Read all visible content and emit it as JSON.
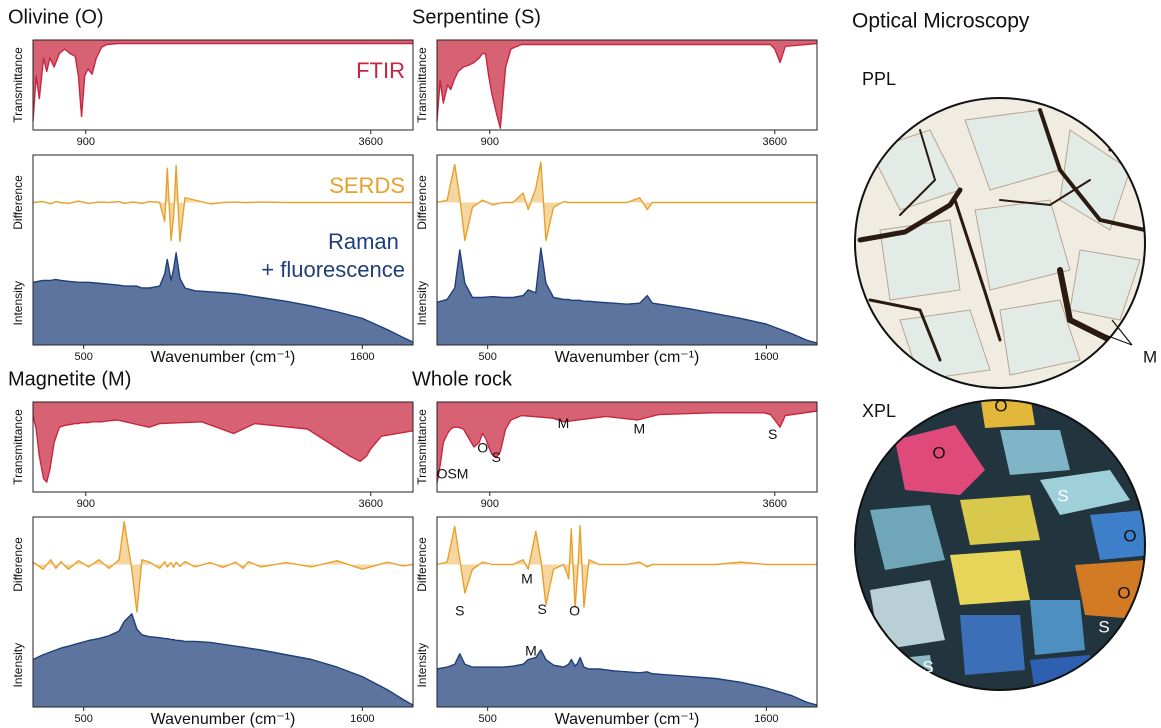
{
  "chart_data": [
    {
      "type": "spectra",
      "title": "Olivine (O)",
      "ftir": {
        "ylabel": "Transmittance",
        "xlim": [
          400,
          4000
        ],
        "xticks": [
          900,
          3600
        ],
        "ylim": [
          0,
          1
        ],
        "x": [
          400,
          430,
          460,
          500,
          530,
          560,
          600,
          650,
          700,
          750,
          800,
          830,
          860,
          890,
          920,
          960,
          1000,
          1050,
          1100,
          1200,
          1500,
          1600,
          2000,
          2300,
          2500,
          3000,
          3400,
          3500,
          3560,
          3600,
          3650,
          3700,
          4000
        ],
        "series": [
          {
            "name": "FTIR",
            "color": "#c8263f",
            "fill": "above",
            "values": [
              0.1,
              0.6,
              0.35,
              0.8,
              0.65,
              0.8,
              0.7,
              0.85,
              0.9,
              0.85,
              0.82,
              0.6,
              0.15,
              0.6,
              0.68,
              0.62,
              0.8,
              0.92,
              0.95,
              0.96,
              0.96,
              0.96,
              0.96,
              0.96,
              0.96,
              0.96,
              0.96,
              0.96,
              0.96,
              0.96,
              0.96,
              0.96,
              0.96
            ]
          }
        ]
      },
      "raman": {
        "xlabel": "Wavenumber (cm⁻¹)",
        "ylabel": "Intensity",
        "y2label": "Difference",
        "xlim": [
          300,
          1800
        ],
        "xticks": [
          500,
          1600
        ],
        "ylim": [
          0,
          2
        ],
        "y2lim": [
          -3,
          1
        ],
        "x": [
          300,
          340,
          370,
          390,
          410,
          440,
          480,
          520,
          560,
          600,
          640,
          660,
          690,
          710,
          730,
          760,
          800,
          820,
          830,
          845,
          855,
          865,
          880,
          900,
          940,
          1000,
          1050,
          1100,
          1130,
          1150,
          1200,
          1300,
          1400,
          1500,
          1600,
          1700,
          1760,
          1800
        ],
        "series": [
          {
            "name": "SERDS",
            "color": "#e8a12c",
            "axis": "y2",
            "fill": "zero",
            "values": [
              0,
              0.02,
              -0.03,
              0.02,
              0,
              -0.02,
              0.03,
              -0.02,
              0.01,
              0,
              0.02,
              -0.02,
              0.01,
              0,
              -0.02,
              0.02,
              0,
              -0.4,
              0.72,
              -0.8,
              -0.3,
              0.78,
              -0.82,
              0.1,
              0.05,
              -0.03,
              0,
              0.01,
              0,
              0,
              0.01,
              0,
              0,
              0,
              0,
              0,
              0,
              0
            ]
          },
          {
            "name": "Raman + fluorescence",
            "color": "#1f3f7a",
            "fill": "below",
            "values": [
              0.66,
              0.68,
              0.68,
              0.69,
              0.68,
              0.67,
              0.66,
              0.66,
              0.65,
              0.64,
              0.63,
              0.62,
              0.62,
              0.62,
              0.6,
              0.6,
              0.62,
              0.75,
              0.9,
              0.68,
              0.8,
              0.97,
              0.7,
              0.6,
              0.57,
              0.56,
              0.55,
              0.54,
              0.53,
              0.52,
              0.5,
              0.46,
              0.41,
              0.35,
              0.28,
              0.16,
              0.08,
              0.03
            ]
          }
        ]
      }
    },
    {
      "type": "spectra",
      "title": "Serpentine (S)",
      "ftir": {
        "ylabel": "Transmittance",
        "xlim": [
          400,
          4000
        ],
        "xticks": [
          900,
          3600
        ],
        "ylim": [
          0,
          1
        ],
        "x": [
          400,
          430,
          460,
          500,
          530,
          560,
          600,
          650,
          700,
          750,
          800,
          830,
          860,
          890,
          920,
          960,
          1000,
          1050,
          1100,
          1200,
          1500,
          1600,
          2000,
          2300,
          2500,
          3000,
          3400,
          3500,
          3560,
          3600,
          3650,
          3700,
          4000
        ],
        "series": [
          {
            "color": "#c8263f",
            "fill": "above",
            "values": [
              0.1,
              0.55,
              0.3,
              0.5,
              0.45,
              0.55,
              0.65,
              0.7,
              0.72,
              0.75,
              0.8,
              0.85,
              0.85,
              0.6,
              0.4,
              0.2,
              0.02,
              0.7,
              0.9,
              0.95,
              0.95,
              0.95,
              0.95,
              0.95,
              0.95,
              0.95,
              0.95,
              0.95,
              0.95,
              0.9,
              0.75,
              0.93,
              0.96
            ]
          }
        ]
      },
      "raman": {
        "xlabel": "Wavenumber (cm⁻¹)",
        "ylabel": "Intensity",
        "y2label": "Difference",
        "xlim": [
          300,
          1800
        ],
        "xticks": [
          500,
          1600
        ],
        "ylim": [
          0,
          2
        ],
        "y2lim": [
          -3,
          1
        ],
        "x": [
          300,
          340,
          370,
          390,
          410,
          440,
          480,
          520,
          560,
          600,
          640,
          660,
          690,
          710,
          730,
          760,
          800,
          820,
          830,
          845,
          855,
          865,
          880,
          900,
          940,
          1000,
          1050,
          1100,
          1130,
          1150,
          1200,
          1300,
          1400,
          1500,
          1600,
          1700,
          1760,
          1800
        ],
        "series": [
          {
            "color": "#e8a12c",
            "axis": "y2",
            "fill": "zero",
            "values": [
              0,
              0.05,
              0.8,
              0.1,
              -0.8,
              -0.1,
              0.05,
              -0.05,
              0,
              0,
              0.2,
              -0.15,
              0.3,
              0.85,
              -0.8,
              -0.1,
              0.02,
              0,
              0,
              0,
              0,
              0,
              0,
              0,
              0,
              0,
              0,
              0.1,
              -0.15,
              0,
              0,
              0,
              0,
              0,
              0,
              0,
              0,
              0
            ]
          },
          {
            "color": "#1f3f7a",
            "fill": "below",
            "values": [
              0.45,
              0.48,
              0.6,
              1.0,
              0.65,
              0.5,
              0.5,
              0.51,
              0.5,
              0.5,
              0.52,
              0.58,
              0.55,
              1.02,
              0.65,
              0.5,
              0.48,
              0.48,
              0.47,
              0.47,
              0.47,
              0.47,
              0.46,
              0.46,
              0.45,
              0.44,
              0.43,
              0.44,
              0.52,
              0.44,
              0.42,
              0.38,
              0.33,
              0.28,
              0.22,
              0.12,
              0.05,
              0.02
            ]
          }
        ]
      }
    },
    {
      "type": "spectra",
      "title": "Magnetite (M)",
      "ftir": {
        "ylabel": "Transmittance",
        "xlim": [
          400,
          4000
        ],
        "xticks": [
          900,
          3600
        ],
        "ylim": [
          0,
          1
        ],
        "x": [
          400,
          430,
          460,
          500,
          530,
          560,
          600,
          650,
          700,
          750,
          800,
          830,
          860,
          890,
          920,
          960,
          1000,
          1050,
          1100,
          1200,
          1500,
          1600,
          2000,
          2300,
          2500,
          3000,
          3400,
          3500,
          3560,
          3600,
          3650,
          3700,
          4000
        ],
        "series": [
          {
            "color": "#c8263f",
            "fill": "above",
            "values": [
              0.85,
              0.7,
              0.4,
              0.15,
              0.11,
              0.25,
              0.55,
              0.72,
              0.74,
              0.75,
              0.76,
              0.76,
              0.77,
              0.77,
              0.77,
              0.78,
              0.78,
              0.78,
              0.79,
              0.8,
              0.72,
              0.76,
              0.78,
              0.65,
              0.76,
              0.7,
              0.4,
              0.34,
              0.4,
              0.48,
              0.55,
              0.62,
              0.68
            ]
          }
        ]
      },
      "raman": {
        "xlabel": "Wavenumber (cm⁻¹)",
        "ylabel": "Intensity",
        "y2label": "Difference",
        "xlim": [
          300,
          1800
        ],
        "xticks": [
          500,
          1600
        ],
        "ylim": [
          0,
          2
        ],
        "y2lim": [
          -3,
          1
        ],
        "x": [
          300,
          340,
          370,
          390,
          410,
          440,
          480,
          520,
          560,
          600,
          640,
          660,
          690,
          710,
          730,
          760,
          800,
          820,
          830,
          845,
          855,
          865,
          880,
          900,
          940,
          1000,
          1050,
          1100,
          1130,
          1150,
          1200,
          1300,
          1400,
          1500,
          1600,
          1700,
          1760,
          1800
        ],
        "series": [
          {
            "color": "#e8a12c",
            "axis": "y2",
            "fill": "zero",
            "values": [
              0.05,
              -0.1,
              0.1,
              -0.08,
              0.06,
              -0.1,
              0.08,
              -0.05,
              0.1,
              -0.08,
              0.1,
              0.9,
              -0.1,
              -1.0,
              0.1,
              0.05,
              -0.08,
              0.06,
              -0.05,
              0.04,
              -0.06,
              0.05,
              -0.04,
              0.06,
              -0.05,
              0.04,
              -0.06,
              0.05,
              -0.08,
              0.06,
              -0.05,
              0.04,
              -0.05,
              0.08,
              -0.1,
              0.05,
              -0.03,
              0
            ]
          },
          {
            "color": "#1f3f7a",
            "fill": "below",
            "values": [
              0.5,
              0.55,
              0.58,
              0.6,
              0.62,
              0.64,
              0.67,
              0.7,
              0.72,
              0.75,
              0.8,
              0.9,
              0.98,
              0.82,
              0.76,
              0.74,
              0.73,
              0.72,
              0.72,
              0.71,
              0.71,
              0.7,
              0.7,
              0.69,
              0.69,
              0.68,
              0.66,
              0.64,
              0.63,
              0.62,
              0.6,
              0.55,
              0.5,
              0.42,
              0.32,
              0.18,
              0.08,
              0.02
            ]
          }
        ]
      }
    },
    {
      "type": "spectra",
      "title": "Whole rock",
      "ftir": {
        "ylabel": "Transmittance",
        "xlim": [
          400,
          4000
        ],
        "xticks": [
          900,
          3600
        ],
        "ylim": [
          0,
          1
        ],
        "x": [
          400,
          430,
          460,
          500,
          530,
          560,
          600,
          650,
          700,
          750,
          800,
          830,
          860,
          890,
          920,
          960,
          1000,
          1050,
          1100,
          1200,
          1500,
          1600,
          2000,
          2300,
          2500,
          3000,
          3400,
          3500,
          3560,
          3600,
          3650,
          3700,
          4000
        ],
        "series": [
          {
            "color": "#c8263f",
            "fill": "above",
            "values": [
              0.1,
              0.3,
              0.55,
              0.65,
              0.7,
              0.72,
              0.72,
              0.7,
              0.6,
              0.5,
              0.55,
              0.65,
              0.6,
              0.5,
              0.42,
              0.38,
              0.45,
              0.7,
              0.8,
              0.85,
              0.82,
              0.78,
              0.84,
              0.8,
              0.86,
              0.88,
              0.88,
              0.88,
              0.86,
              0.8,
              0.72,
              0.85,
              0.9
            ]
          }
        ],
        "annotations": [
          {
            "text": "OSM",
            "x": 547,
            "y": 0.19
          },
          {
            "text": "O",
            "x": 833,
            "y": 0.48
          },
          {
            "text": "S",
            "x": 962,
            "y": 0.375
          },
          {
            "text": "M",
            "x": 1598,
            "y": 0.75
          },
          {
            "text": "M",
            "x": 2317,
            "y": 0.69
          },
          {
            "text": "S",
            "x": 3580,
            "y": 0.63
          }
        ]
      },
      "raman": {
        "xlabel": "Wavenumber (cm⁻¹)",
        "ylabel": "Intensity",
        "y2label": "Difference",
        "xlim": [
          300,
          1800
        ],
        "xticks": [
          500,
          1600
        ],
        "ylim": [
          0,
          2
        ],
        "y2lim": [
          -3,
          1
        ],
        "x": [
          300,
          340,
          370,
          390,
          410,
          440,
          480,
          520,
          560,
          600,
          640,
          660,
          690,
          710,
          730,
          760,
          800,
          820,
          830,
          845,
          855,
          865,
          880,
          900,
          940,
          1000,
          1050,
          1100,
          1130,
          1150,
          1200,
          1300,
          1400,
          1500,
          1600,
          1700,
          1760,
          1800
        ],
        "series": [
          {
            "color": "#e8a12c",
            "axis": "y2",
            "fill": "zero",
            "values": [
              0,
              0.05,
              0.8,
              0.1,
              -0.6,
              -0.1,
              0.05,
              0,
              0,
              0,
              0.1,
              -0.1,
              0.7,
              0.1,
              -0.85,
              -0.1,
              0,
              -0.3,
              0.75,
              -0.9,
              -0.2,
              0.82,
              -0.9,
              0.1,
              0,
              0,
              0,
              0.05,
              -0.05,
              0,
              0,
              0,
              0,
              0.05,
              0,
              0,
              0,
              0
            ]
          },
          {
            "color": "#1f3f7a",
            "fill": "below",
            "values": [
              0.4,
              0.42,
              0.45,
              0.56,
              0.45,
              0.42,
              0.42,
              0.42,
              0.42,
              0.43,
              0.45,
              0.5,
              0.52,
              0.6,
              0.5,
              0.44,
              0.42,
              0.45,
              0.5,
              0.43,
              0.46,
              0.52,
              0.42,
              0.4,
              0.4,
              0.38,
              0.37,
              0.36,
              0.37,
              0.35,
              0.34,
              0.32,
              0.3,
              0.26,
              0.2,
              0.12,
              0.05,
              0.02
            ]
          }
        ],
        "annotations": [
          {
            "text": "S",
            "x": 390,
            "y": 1.0
          },
          {
            "text": "M",
            "x": 655,
            "y": 1.34
          },
          {
            "text": "S",
            "x": 715,
            "y": 1.02
          },
          {
            "text": "O",
            "x": 843,
            "y": 1.0
          },
          {
            "text": "M",
            "x": 671,
            "y": 0.58
          }
        ]
      }
    }
  ],
  "microscopy": {
    "title": "Optical Microscopy",
    "panels": [
      {
        "label": "PPL",
        "labels": [
          "M"
        ]
      },
      {
        "label": "XPL",
        "labels": [
          "O",
          "O",
          "S",
          "O",
          "O",
          "S",
          "S"
        ]
      }
    ]
  }
}
